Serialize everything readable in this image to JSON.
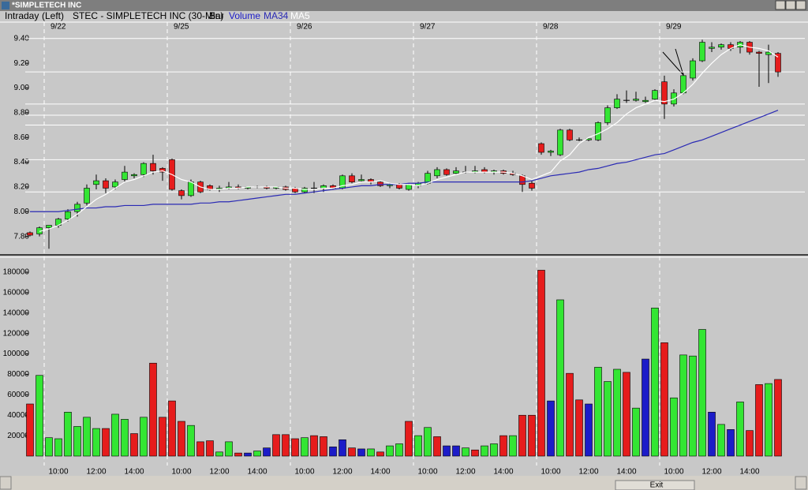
{
  "window": {
    "title": "*SIMPLETECH INC"
  },
  "header": {
    "mode": "Intraday",
    "scale": "(Left)",
    "symbol": "STEC - SIMPLETECH INC (30-Min)",
    "style": "Bar"
  },
  "footer": {
    "button": "Exit"
  },
  "chart_data": [
    {
      "type": "candlestick",
      "dates": [
        null,
        null,
        "9/22",
        null,
        null,
        null,
        null,
        null,
        null,
        null,
        null,
        null,
        null,
        null,
        null,
        "9/25",
        null,
        null,
        null,
        null,
        null,
        null,
        null,
        null,
        null,
        null,
        null,
        null,
        "9/26",
        null,
        null,
        null,
        null,
        null,
        null,
        null,
        null,
        null,
        null,
        null,
        null,
        "9/27",
        null,
        null,
        null,
        null,
        null,
        null,
        null,
        null,
        null,
        null,
        null,
        null,
        "9/28",
        null,
        null,
        null,
        null,
        null,
        null,
        null,
        null,
        null,
        null,
        null,
        null,
        "9/29",
        null,
        null,
        null,
        null,
        null,
        null,
        null,
        null,
        null,
        null,
        null,
        null
      ],
      "open": [
        7.83,
        7.82,
        7.87,
        7.89,
        7.94,
        8.0,
        8.07,
        8.22,
        8.25,
        8.2,
        8.26,
        8.29,
        8.3,
        8.39,
        8.35,
        8.42,
        8.17,
        8.13,
        8.24,
        8.21,
        8.18,
        8.19,
        8.2,
        8.19,
        8.2,
        8.2,
        8.19,
        8.2,
        8.19,
        8.16,
        8.19,
        8.19,
        8.21,
        8.19,
        8.29,
        8.25,
        8.26,
        8.24,
        8.21,
        8.22,
        8.18,
        8.21,
        8.23,
        8.29,
        8.34,
        8.31,
        8.32,
        8.32,
        8.34,
        8.32,
        8.33,
        8.31,
        8.29,
        8.23,
        8.55,
        8.48,
        8.46,
        8.66,
        8.58,
        8.58,
        8.58,
        8.72,
        8.84,
        8.9,
        8.9,
        8.89,
        8.91,
        9.05,
        8.87,
        8.96,
        9.08,
        9.22,
        9.32,
        9.33,
        9.35,
        9.33,
        9.37,
        9.29,
        9.27,
        9.28
      ],
      "high": [
        7.84,
        7.88,
        7.89,
        7.95,
        8.02,
        8.08,
        8.22,
        8.3,
        8.27,
        8.26,
        8.37,
        8.31,
        8.4,
        8.46,
        8.36,
        8.43,
        8.18,
        8.26,
        8.25,
        8.22,
        8.21,
        8.24,
        8.22,
        8.2,
        8.21,
        8.21,
        8.2,
        8.21,
        8.2,
        8.2,
        8.24,
        8.22,
        8.22,
        8.3,
        8.31,
        8.3,
        8.27,
        8.25,
        8.23,
        8.23,
        8.23,
        8.24,
        8.33,
        8.36,
        8.35,
        8.36,
        8.37,
        8.37,
        8.36,
        8.34,
        8.34,
        8.33,
        8.3,
        8.25,
        8.56,
        8.5,
        8.67,
        8.67,
        8.6,
        8.59,
        8.73,
        8.86,
        8.95,
        8.98,
        8.97,
        8.93,
        8.99,
        9.1,
        8.99,
        9.12,
        9.24,
        9.39,
        9.37,
        9.36,
        9.37,
        9.38,
        9.38,
        9.3,
        9.35,
        9.29
      ],
      "low": [
        7.8,
        7.8,
        7.7,
        7.87,
        7.92,
        7.96,
        8.05,
        8.18,
        8.15,
        8.18,
        8.24,
        8.27,
        8.28,
        8.3,
        8.25,
        8.17,
        8.1,
        8.12,
        8.15,
        8.17,
        8.16,
        8.18,
        8.18,
        8.18,
        8.19,
        8.18,
        8.18,
        8.17,
        8.15,
        8.15,
        8.15,
        8.16,
        8.18,
        8.18,
        8.23,
        8.24,
        8.22,
        8.2,
        8.19,
        8.18,
        8.17,
        8.19,
        8.22,
        8.27,
        8.29,
        8.3,
        8.31,
        8.31,
        8.31,
        8.3,
        8.3,
        8.29,
        8.16,
        8.17,
        8.46,
        8.45,
        8.45,
        8.57,
        8.57,
        8.57,
        8.57,
        8.7,
        8.83,
        8.88,
        8.89,
        8.88,
        8.9,
        8.75,
        8.85,
        8.95,
        9.06,
        9.21,
        9.29,
        9.31,
        9.3,
        9.28,
        9.27,
        9.01,
        9.04,
        9.09
      ],
      "close": [
        7.81,
        7.87,
        7.89,
        7.94,
        8.0,
        8.06,
        8.19,
        8.25,
        8.19,
        8.24,
        8.32,
        8.3,
        8.39,
        8.33,
        8.32,
        8.18,
        8.13,
        8.24,
        8.16,
        8.18,
        8.19,
        8.2,
        8.19,
        8.2,
        8.2,
        8.19,
        8.2,
        8.18,
        8.16,
        8.19,
        8.19,
        8.21,
        8.19,
        8.29,
        8.24,
        8.26,
        8.24,
        8.21,
        8.22,
        8.19,
        8.22,
        8.23,
        8.31,
        8.34,
        8.3,
        8.33,
        8.32,
        8.33,
        8.32,
        8.33,
        8.31,
        8.3,
        8.22,
        8.19,
        8.48,
        8.49,
        8.66,
        8.58,
        8.58,
        8.59,
        8.72,
        8.84,
        8.91,
        8.9,
        8.91,
        8.9,
        8.98,
        8.87,
        8.96,
        9.1,
        9.22,
        9.37,
        9.33,
        9.35,
        9.32,
        9.37,
        9.29,
        9.28,
        9.29,
        9.13
      ],
      "up_color": "#33e633",
      "down_color": "#e61c1c",
      "lines": [
        {
          "name": "MA34",
          "color": "#2a2ab4",
          "values": [
            8.0,
            8.0,
            8.0,
            8.0,
            8.01,
            8.02,
            8.03,
            8.03,
            8.04,
            8.04,
            8.05,
            8.05,
            8.05,
            8.06,
            8.06,
            8.06,
            8.06,
            8.06,
            8.07,
            8.07,
            8.08,
            8.08,
            8.09,
            8.1,
            8.11,
            8.12,
            8.13,
            8.14,
            8.14,
            8.15,
            8.16,
            8.17,
            8.18,
            8.19,
            8.2,
            8.21,
            8.21,
            8.22,
            8.22,
            8.22,
            8.23,
            8.23,
            8.24,
            8.24,
            8.24,
            8.24,
            8.24,
            8.24,
            8.24,
            8.24,
            8.24,
            8.24,
            8.24,
            8.25,
            8.27,
            8.29,
            8.3,
            8.31,
            8.32,
            8.34,
            8.35,
            8.37,
            8.39,
            8.4,
            8.42,
            8.44,
            8.46,
            8.47,
            8.5,
            8.53,
            8.56,
            8.58,
            8.61,
            8.64,
            8.67,
            8.7,
            8.73,
            8.76,
            8.79,
            8.82
          ]
        },
        {
          "name": "MA5",
          "color": "#ffffff",
          "values": [
            null,
            7.84,
            7.86,
            7.89,
            7.93,
            7.98,
            8.04,
            8.1,
            8.14,
            8.19,
            8.24,
            8.26,
            8.29,
            8.32,
            8.33,
            8.3,
            8.26,
            8.24,
            8.2,
            8.18,
            8.18,
            8.19,
            8.19,
            8.2,
            8.2,
            8.2,
            8.2,
            8.19,
            8.19,
            8.18,
            8.18,
            8.19,
            8.19,
            8.21,
            8.22,
            8.24,
            8.24,
            8.25,
            8.23,
            8.22,
            8.22,
            8.21,
            8.23,
            8.26,
            8.28,
            8.3,
            8.32,
            8.32,
            8.32,
            8.32,
            8.32,
            8.31,
            8.29,
            8.26,
            8.29,
            8.32,
            8.41,
            8.46,
            8.55,
            8.6,
            8.63,
            8.67,
            8.72,
            8.79,
            8.84,
            8.87,
            8.9,
            8.89,
            8.91,
            8.96,
            9.03,
            9.12,
            9.2,
            9.27,
            9.32,
            9.35,
            9.33,
            9.32,
            9.3,
            9.25
          ]
        }
      ],
      "horizontal_lines": {
        "color": "#ffffff",
        "values": [
          9.4,
          9.13,
          8.87,
          8.78,
          8.7,
          8.42,
          8.16
        ]
      },
      "ylim": [
        7.67,
        9.52
      ],
      "yticks": [
        {
          "value": 7.8,
          "label": "7.80"
        },
        {
          "value": 8.0,
          "label": "8.00"
        },
        {
          "value": 8.2,
          "label": "8.20"
        },
        {
          "value": 8.4,
          "label": "8.40"
        },
        {
          "value": 8.6,
          "label": "8.60"
        },
        {
          "value": 8.8,
          "label": "8.80"
        },
        {
          "value": 9.0,
          "label": "9.00"
        },
        {
          "value": 9.2,
          "label": "9.20"
        },
        {
          "value": 9.4,
          "label": "9.40"
        }
      ]
    },
    {
      "type": "bar",
      "name": "Volume",
      "categories": [
        null,
        null,
        null,
        "10:00",
        null,
        null,
        null,
        "12:00",
        null,
        null,
        null,
        "14:00",
        null,
        null,
        null,
        null,
        "10:00",
        null,
        null,
        null,
        "12:00",
        null,
        null,
        null,
        "14:00",
        null,
        null,
        null,
        null,
        "10:00",
        null,
        null,
        null,
        "12:00",
        null,
        null,
        null,
        "14:00",
        null,
        null,
        null,
        null,
        "10:00",
        null,
        null,
        null,
        "12:00",
        null,
        null,
        null,
        "14:00",
        null,
        null,
        null,
        null,
        "10:00",
        null,
        null,
        null,
        "12:00",
        null,
        null,
        null,
        "14:00",
        null,
        null,
        null,
        null,
        "10:00",
        null,
        null,
        null,
        "12:00",
        null,
        null,
        null,
        "14:00",
        null,
        null,
        null
      ],
      "values": [
        51000,
        79000,
        18000,
        17000,
        43000,
        29000,
        38000,
        27000,
        27000,
        41000,
        36000,
        22000,
        38000,
        91000,
        38000,
        54000,
        34000,
        30000,
        14000,
        15000,
        4000,
        14000,
        3000,
        3000,
        5000,
        8000,
        21000,
        21000,
        17000,
        18000,
        20000,
        19000,
        9000,
        16000,
        8000,
        7000,
        7000,
        4000,
        10000,
        12000,
        34000,
        20000,
        28000,
        19000,
        10000,
        10000,
        8000,
        6000,
        10000,
        12000,
        20000,
        20000,
        40000,
        40000,
        182000,
        54000,
        153000,
        81000,
        55000,
        51000,
        87000,
        73000,
        85000,
        82000,
        47000,
        95000,
        145000,
        111000,
        57000,
        99000,
        98000,
        124000,
        43000,
        31000,
        26000,
        53000,
        25000,
        70000,
        71000,
        75000
      ],
      "colors": [
        "#e61c1c",
        "#33e633",
        "#33e633",
        "#33e633",
        "#33e633",
        "#33e633",
        "#33e633",
        "#33e633",
        "#e61c1c",
        "#33e633",
        "#33e633",
        "#e61c1c",
        "#33e633",
        "#e61c1c",
        "#e61c1c",
        "#e61c1c",
        "#e61c1c",
        "#33e633",
        "#e61c1c",
        "#e61c1c",
        "#33e633",
        "#33e633",
        "#e61c1c",
        "#1c1cc8",
        "#33e633",
        "#1c1cc8",
        "#e61c1c",
        "#e61c1c",
        "#e61c1c",
        "#33e633",
        "#e61c1c",
        "#e61c1c",
        "#1c1cc8",
        "#1c1cc8",
        "#e61c1c",
        "#1c1cc8",
        "#33e633",
        "#e61c1c",
        "#33e633",
        "#33e633",
        "#e61c1c",
        "#33e633",
        "#33e633",
        "#e61c1c",
        "#1c1cc8",
        "#1c1cc8",
        "#33e633",
        "#e61c1c",
        "#33e633",
        "#33e633",
        "#e61c1c",
        "#33e633",
        "#e61c1c",
        "#e61c1c",
        "#e61c1c",
        "#1c1cc8",
        "#33e633",
        "#e61c1c",
        "#e61c1c",
        "#1c1cc8",
        "#33e633",
        "#33e633",
        "#33e633",
        "#e61c1c",
        "#33e633",
        "#1c1cc8",
        "#33e633",
        "#e61c1c",
        "#33e633",
        "#33e633",
        "#33e633",
        "#33e633",
        "#1c1cc8",
        "#33e633",
        "#1c1cc8",
        "#33e633",
        "#e61c1c",
        "#e61c1c",
        "#33e633",
        "#e61c1c"
      ],
      "ylim": [
        0,
        192000
      ],
      "yticks": [
        20000,
        40000,
        60000,
        80000,
        100000,
        120000,
        140000,
        160000,
        180000
      ]
    }
  ]
}
